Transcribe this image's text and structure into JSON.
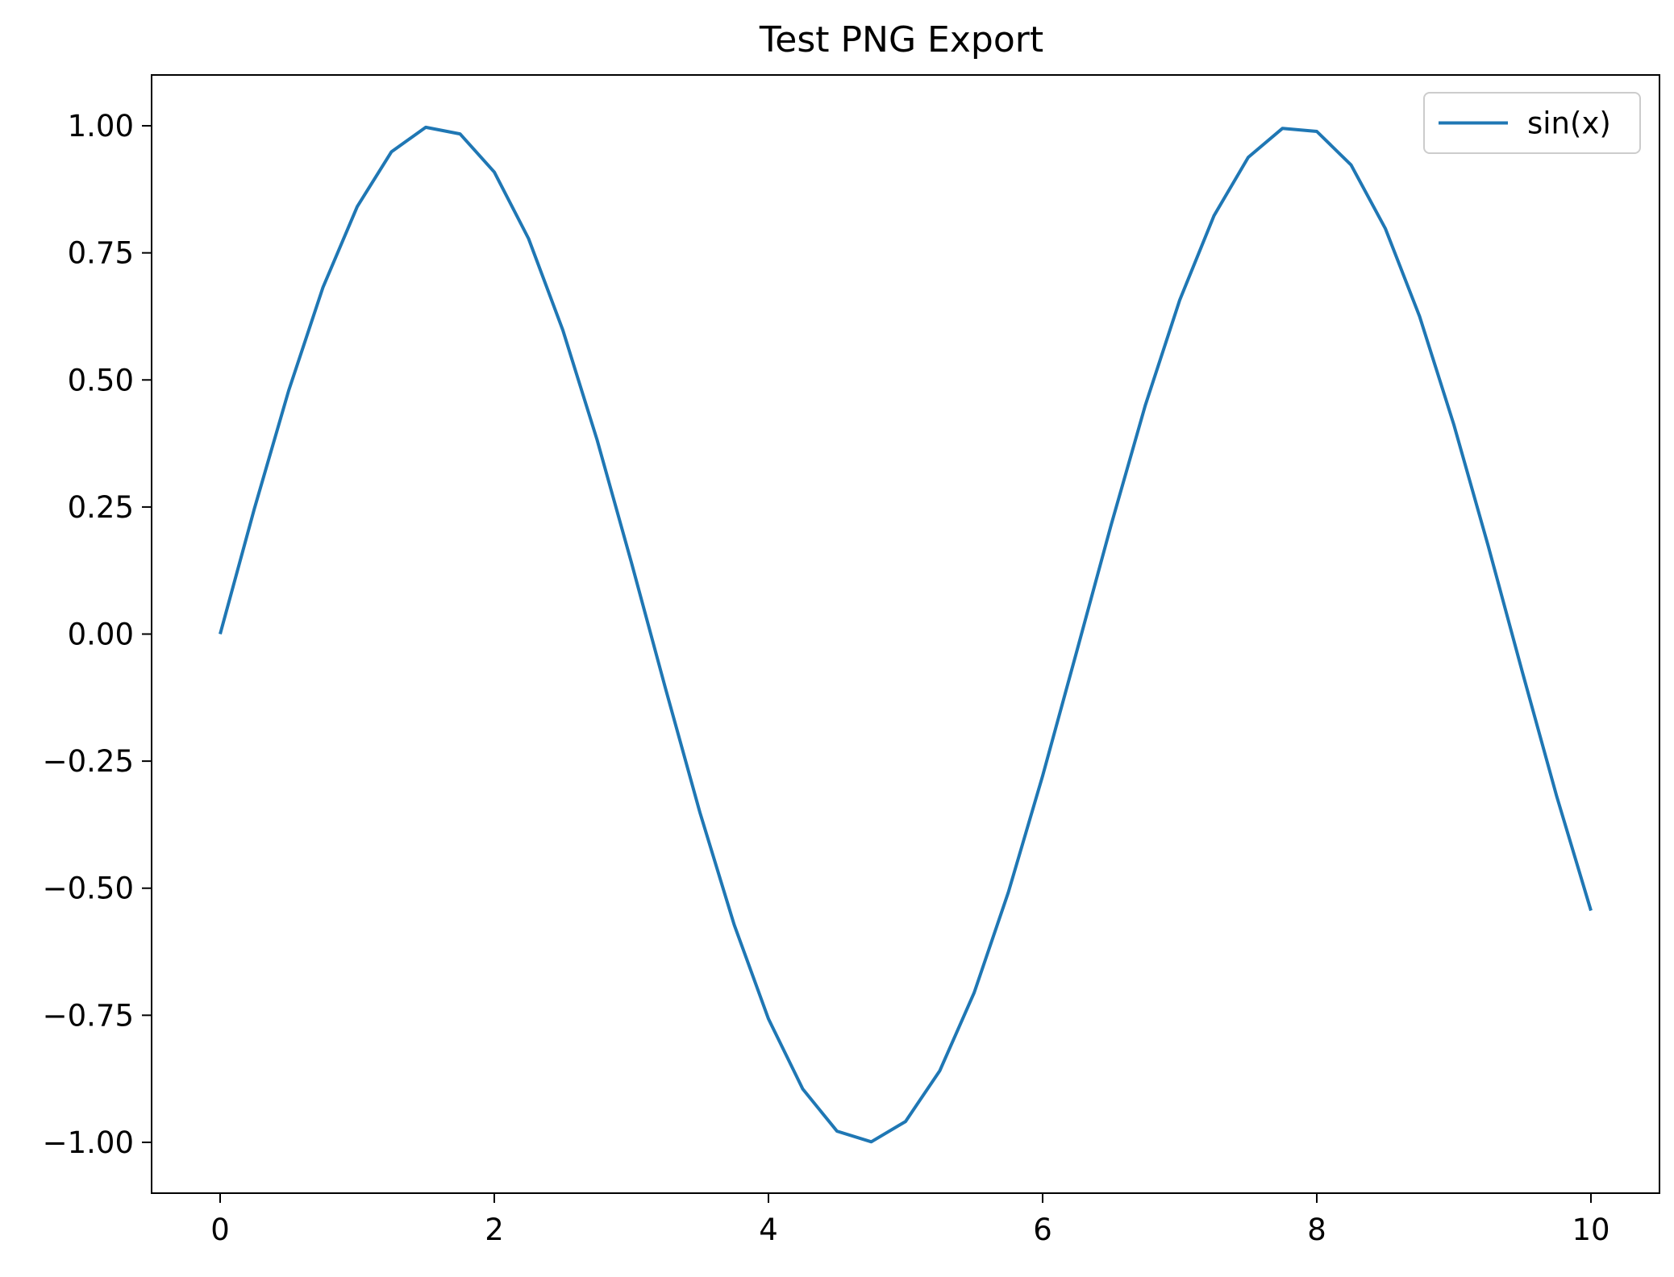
{
  "chart_data": {
    "type": "line",
    "title": "Test PNG Export",
    "xlabel": "",
    "ylabel": "",
    "xlim": [
      -0.5,
      10.5
    ],
    "ylim": [
      -1.1,
      1.1
    ],
    "grid": false,
    "legend_position": "top-right",
    "x_ticks": [
      0,
      2,
      4,
      6,
      8,
      10
    ],
    "x_tick_labels": [
      "0",
      "2",
      "4",
      "6",
      "8",
      "10"
    ],
    "y_ticks": [
      1.0,
      0.75,
      0.5,
      0.25,
      0.0,
      -0.25,
      -0.5,
      -0.75,
      -1.0
    ],
    "y_tick_labels": [
      "1.00",
      "0.75",
      "0.50",
      "0.25",
      "0.00",
      "−0.25",
      "−0.50",
      "−0.75",
      "−1.00"
    ],
    "series": [
      {
        "name": "sin(x)",
        "color": "#1f77b4",
        "x": [
          0,
          0.25,
          0.5,
          0.75,
          1,
          1.25,
          1.5,
          1.75,
          2,
          2.25,
          2.5,
          2.75,
          3,
          3.25,
          3.5,
          3.75,
          4,
          4.25,
          4.5,
          4.75,
          5,
          5.25,
          5.5,
          5.75,
          6,
          6.25,
          6.5,
          6.75,
          7,
          7.25,
          7.5,
          7.75,
          8,
          8.25,
          8.5,
          8.75,
          9,
          9.25,
          9.5,
          9.75,
          10
        ],
        "y": [
          0,
          0.247,
          0.479,
          0.682,
          0.841,
          0.949,
          0.997,
          0.984,
          0.909,
          0.778,
          0.598,
          0.382,
          0.141,
          -0.108,
          -0.351,
          -0.572,
          -0.757,
          -0.895,
          -0.978,
          -0.999,
          -0.959,
          -0.859,
          -0.706,
          -0.508,
          -0.279,
          -0.033,
          0.215,
          0.451,
          0.657,
          0.823,
          0.938,
          0.995,
          0.989,
          0.923,
          0.798,
          0.625,
          0.412,
          0.174,
          -0.075,
          -0.319,
          -0.544
        ]
      }
    ]
  }
}
